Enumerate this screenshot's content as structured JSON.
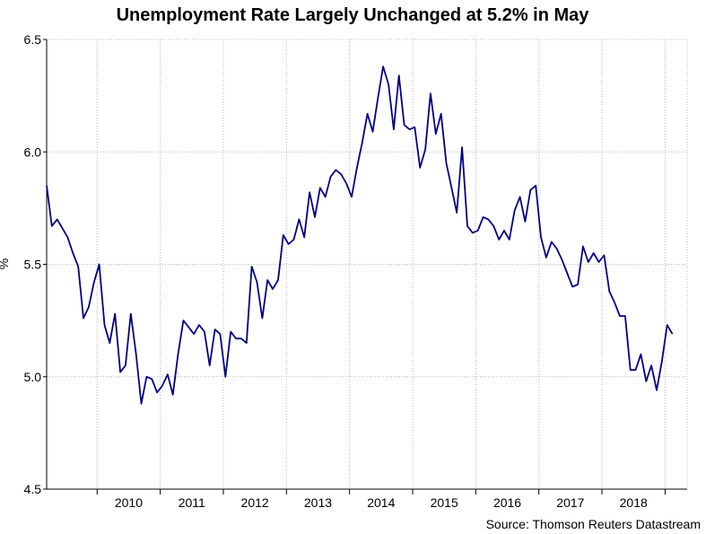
{
  "chart_data": {
    "type": "line",
    "title": "Unemployment Rate Largely Unchanged at 5.2% in May",
    "ylabel": "%",
    "xlabel": "",
    "ylim": [
      4.5,
      6.5
    ],
    "yticks": [
      4.5,
      5.0,
      5.5,
      6.0,
      6.5
    ],
    "ytick_labels": [
      "4.5",
      "5.0",
      "5.5",
      "6.0",
      "6.5"
    ],
    "xlim": [
      2009.2,
      2019.35
    ],
    "xticks": [
      2010,
      2011,
      2012,
      2013,
      2014,
      2015,
      2016,
      2017,
      2018
    ],
    "xtick_labels": [
      "2010",
      "2011",
      "2012",
      "2013",
      "2014",
      "2015",
      "2016",
      "2017",
      "2018"
    ],
    "grid": true,
    "source": "Source: Thomson Reuters Datastream",
    "series": [
      {
        "name": "Unemployment Rate",
        "color": "#000080",
        "values": [
          [
            2009.2,
            5.85
          ],
          [
            2009.283,
            5.67
          ],
          [
            2009.367,
            5.7
          ],
          [
            2009.45,
            5.66
          ],
          [
            2009.533,
            5.62
          ],
          [
            2009.617,
            5.55
          ],
          [
            2009.7,
            5.49
          ],
          [
            2009.783,
            5.26
          ],
          [
            2009.867,
            5.31
          ],
          [
            2009.95,
            5.42
          ],
          [
            2010.033,
            5.5
          ],
          [
            2010.117,
            5.23
          ],
          [
            2010.2,
            5.15
          ],
          [
            2010.283,
            5.28
          ],
          [
            2010.367,
            5.02
          ],
          [
            2010.45,
            5.05
          ],
          [
            2010.533,
            5.28
          ],
          [
            2010.617,
            5.1
          ],
          [
            2010.7,
            4.88
          ],
          [
            2010.783,
            5.0
          ],
          [
            2010.867,
            4.99
          ],
          [
            2010.95,
            4.93
          ],
          [
            2011.033,
            4.96
          ],
          [
            2011.117,
            5.01
          ],
          [
            2011.2,
            4.92
          ],
          [
            2011.283,
            5.1
          ],
          [
            2011.367,
            5.25
          ],
          [
            2011.45,
            5.22
          ],
          [
            2011.533,
            5.19
          ],
          [
            2011.617,
            5.23
          ],
          [
            2011.7,
            5.2
          ],
          [
            2011.783,
            5.05
          ],
          [
            2011.867,
            5.21
          ],
          [
            2011.95,
            5.19
          ],
          [
            2012.033,
            5.0
          ],
          [
            2012.117,
            5.2
          ],
          [
            2012.2,
            5.17
          ],
          [
            2012.283,
            5.17
          ],
          [
            2012.367,
            5.15
          ],
          [
            2012.45,
            5.49
          ],
          [
            2012.533,
            5.42
          ],
          [
            2012.617,
            5.26
          ],
          [
            2012.7,
            5.43
          ],
          [
            2012.783,
            5.39
          ],
          [
            2012.867,
            5.43
          ],
          [
            2012.95,
            5.63
          ],
          [
            2013.033,
            5.59
          ],
          [
            2013.117,
            5.61
          ],
          [
            2013.2,
            5.7
          ],
          [
            2013.283,
            5.62
          ],
          [
            2013.367,
            5.82
          ],
          [
            2013.45,
            5.71
          ],
          [
            2013.533,
            5.84
          ],
          [
            2013.617,
            5.8
          ],
          [
            2013.7,
            5.89
          ],
          [
            2013.783,
            5.92
          ],
          [
            2013.867,
            5.9
          ],
          [
            2013.95,
            5.86
          ],
          [
            2014.033,
            5.8
          ],
          [
            2014.117,
            5.93
          ],
          [
            2014.2,
            6.04
          ],
          [
            2014.283,
            6.17
          ],
          [
            2014.367,
            6.09
          ],
          [
            2014.45,
            6.24
          ],
          [
            2014.533,
            6.38
          ],
          [
            2014.617,
            6.3
          ],
          [
            2014.7,
            6.1
          ],
          [
            2014.783,
            6.34
          ],
          [
            2014.867,
            6.12
          ],
          [
            2014.95,
            6.1
          ],
          [
            2015.033,
            6.11
          ],
          [
            2015.117,
            5.93
          ],
          [
            2015.2,
            6.01
          ],
          [
            2015.283,
            6.26
          ],
          [
            2015.367,
            6.08
          ],
          [
            2015.45,
            6.17
          ],
          [
            2015.533,
            5.95
          ],
          [
            2015.617,
            5.84
          ],
          [
            2015.7,
            5.73
          ],
          [
            2015.783,
            6.02
          ],
          [
            2015.867,
            5.67
          ],
          [
            2015.95,
            5.64
          ],
          [
            2016.033,
            5.65
          ],
          [
            2016.117,
            5.71
          ],
          [
            2016.2,
            5.7
          ],
          [
            2016.283,
            5.67
          ],
          [
            2016.367,
            5.61
          ],
          [
            2016.45,
            5.65
          ],
          [
            2016.533,
            5.61
          ],
          [
            2016.617,
            5.74
          ],
          [
            2016.7,
            5.8
          ],
          [
            2016.783,
            5.69
          ],
          [
            2016.867,
            5.83
          ],
          [
            2016.95,
            5.85
          ],
          [
            2017.033,
            5.62
          ],
          [
            2017.117,
            5.53
          ],
          [
            2017.2,
            5.6
          ],
          [
            2017.283,
            5.57
          ],
          [
            2017.367,
            5.52
          ],
          [
            2017.45,
            5.46
          ],
          [
            2017.533,
            5.4
          ],
          [
            2017.617,
            5.41
          ],
          [
            2017.7,
            5.58
          ],
          [
            2017.783,
            5.51
          ],
          [
            2017.867,
            5.55
          ],
          [
            2017.95,
            5.51
          ],
          [
            2018.033,
            5.54
          ],
          [
            2018.117,
            5.38
          ],
          [
            2018.2,
            5.33
          ],
          [
            2018.283,
            5.27
          ],
          [
            2018.367,
            5.27
          ],
          [
            2018.45,
            5.03
          ],
          [
            2018.533,
            5.03
          ],
          [
            2018.617,
            5.1
          ],
          [
            2018.7,
            4.98
          ],
          [
            2018.783,
            5.05
          ],
          [
            2018.867,
            4.94
          ],
          [
            2018.95,
            5.07
          ],
          [
            2019.033,
            5.23
          ],
          [
            2019.117,
            5.19
          ]
        ]
      }
    ]
  }
}
